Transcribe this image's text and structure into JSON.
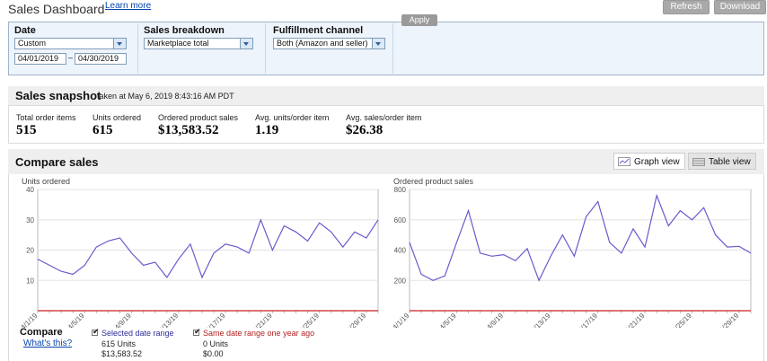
{
  "header": {
    "title": "Sales Dashboard",
    "learn_more": "Learn more",
    "refresh": "Refresh",
    "download": "Download"
  },
  "filters": {
    "date_label": "Date",
    "date_select": "Custom",
    "date_from": "04/01/2019",
    "date_sep": "–",
    "date_to": "04/30/2019",
    "breakdown_label": "Sales breakdown",
    "breakdown_select": "Marketplace total",
    "channel_label": "Fulfillment channel",
    "channel_select": "Both (Amazon and seller)",
    "apply": "Apply"
  },
  "snapshot": {
    "title": "Sales snapshot",
    "taken": "taken at May 6, 2019 8:43:16 AM PDT",
    "metrics": [
      {
        "label": "Total order items",
        "value": "515"
      },
      {
        "label": "Units ordered",
        "value": "615"
      },
      {
        "label": "Ordered product sales",
        "value": "$13,583.52"
      },
      {
        "label": "Avg. units/order item",
        "value": "1.19"
      },
      {
        "label": "Avg. sales/order item",
        "value": "$26.38"
      }
    ]
  },
  "compare": {
    "title": "Compare sales",
    "graph_view": "Graph view",
    "table_view": "Table view",
    "legend_title": "Compare",
    "whats_this": "What's this?",
    "selected": {
      "label": "Selected date range",
      "units": "615 Units",
      "sales": "$13,583.52",
      "color": "#6a5acd"
    },
    "last_year": {
      "label": "Same date range one year ago",
      "units": "0 Units",
      "sales": "$0.00",
      "color": "#cc2222"
    }
  },
  "chart_data": [
    {
      "type": "line",
      "title": "",
      "ylabel": "Units ordered",
      "ylim": [
        0,
        40
      ],
      "yticks": [
        10,
        20,
        30,
        40
      ],
      "xticks": [
        "4/1/19",
        "4/5/19",
        "4/9/19",
        "4/13/19",
        "4/17/19",
        "4/21/19",
        "4/25/19",
        "4/29/19"
      ],
      "x": [
        "4/1/19",
        "4/2/19",
        "4/3/19",
        "4/4/19",
        "4/5/19",
        "4/6/19",
        "4/7/19",
        "4/8/19",
        "4/9/19",
        "4/10/19",
        "4/11/19",
        "4/12/19",
        "4/13/19",
        "4/14/19",
        "4/15/19",
        "4/16/19",
        "4/17/19",
        "4/18/19",
        "4/19/19",
        "4/20/19",
        "4/21/19",
        "4/22/19",
        "4/23/19",
        "4/24/19",
        "4/25/19",
        "4/26/19",
        "4/27/19",
        "4/28/19",
        "4/29/19",
        "4/30/19"
      ],
      "series": [
        {
          "values": [
            17,
            15,
            13,
            12,
            15,
            21,
            23,
            24,
            19,
            15,
            16,
            11,
            17,
            22,
            11,
            19,
            22,
            21,
            19,
            30,
            20,
            28,
            26,
            23,
            29,
            26,
            21,
            26,
            24,
            30
          ],
          "color": "#6a5acd"
        },
        {
          "values": [
            0,
            0,
            0,
            0,
            0,
            0,
            0,
            0,
            0,
            0,
            0,
            0,
            0,
            0,
            0,
            0,
            0,
            0,
            0,
            0,
            0,
            0,
            0,
            0,
            0,
            0,
            0,
            0,
            0,
            0
          ],
          "color": "#cc2222"
        }
      ]
    },
    {
      "type": "line",
      "title": "",
      "ylabel": "Ordered product sales",
      "ylim": [
        0,
        800
      ],
      "yticks": [
        200,
        400,
        600,
        800
      ],
      "xticks": [
        "4/1/19",
        "4/5/19",
        "4/9/19",
        "4/13/19",
        "4/17/19",
        "4/21/19",
        "4/25/19",
        "4/29/19"
      ],
      "x": [
        "4/1/19",
        "4/2/19",
        "4/3/19",
        "4/4/19",
        "4/5/19",
        "4/6/19",
        "4/7/19",
        "4/8/19",
        "4/9/19",
        "4/10/19",
        "4/11/19",
        "4/12/19",
        "4/13/19",
        "4/14/19",
        "4/15/19",
        "4/16/19",
        "4/17/19",
        "4/18/19",
        "4/19/19",
        "4/20/19",
        "4/21/19",
        "4/22/19",
        "4/23/19",
        "4/24/19",
        "4/25/19",
        "4/26/19",
        "4/27/19",
        "4/28/19",
        "4/29/19",
        "4/30/19"
      ],
      "series": [
        {
          "values": [
            450,
            240,
            200,
            230,
            450,
            660,
            380,
            360,
            370,
            330,
            410,
            200,
            360,
            500,
            360,
            620,
            720,
            450,
            380,
            540,
            420,
            760,
            560,
            660,
            600,
            680,
            500,
            420,
            425,
            380
          ],
          "color": "#6a5acd"
        },
        {
          "values": [
            0,
            0,
            0,
            0,
            0,
            0,
            0,
            0,
            0,
            0,
            0,
            0,
            0,
            0,
            0,
            0,
            0,
            0,
            0,
            0,
            0,
            0,
            0,
            0,
            0,
            0,
            0,
            0,
            0,
            0
          ],
          "color": "#cc2222"
        }
      ]
    }
  ]
}
